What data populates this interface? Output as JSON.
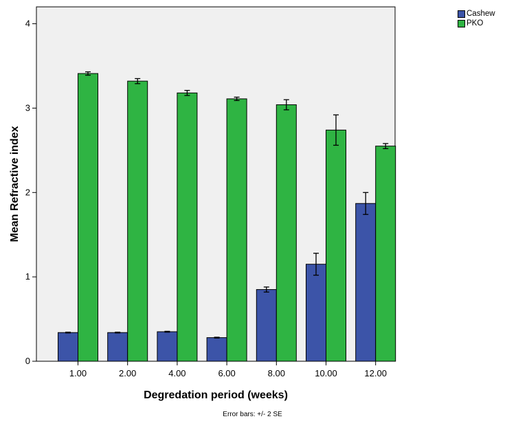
{
  "chart_data": {
    "type": "bar",
    "categories": [
      "1.00",
      "2.00",
      "4.00",
      "6.00",
      "8.00",
      "10.00",
      "12.00"
    ],
    "series": [
      {
        "name": "Cashew",
        "color": "#3c54a8",
        "values": [
          0.34,
          0.34,
          0.35,
          0.28,
          0.85,
          1.15,
          1.87
        ],
        "error_low": [
          0.335,
          0.335,
          0.345,
          0.275,
          0.82,
          1.02,
          1.74
        ],
        "error_high": [
          0.345,
          0.345,
          0.355,
          0.285,
          0.88,
          1.28,
          2.0
        ]
      },
      {
        "name": "PKO",
        "color": "#2fb443",
        "values": [
          3.41,
          3.32,
          3.18,
          3.11,
          3.04,
          2.74,
          2.55
        ],
        "error_low": [
          3.39,
          3.29,
          3.15,
          3.09,
          2.98,
          2.56,
          2.52
        ],
        "error_high": [
          3.43,
          3.35,
          3.21,
          3.13,
          3.1,
          2.92,
          2.58
        ]
      }
    ],
    "xlabel": "Degredation period (weeks)",
    "ylabel": "Mean Refractive index",
    "ylim": [
      0,
      4.2
    ],
    "yticks": [
      "0",
      "1",
      "2",
      "3",
      "4"
    ],
    "legend_position": "top-right",
    "footnote": "Error bars: +/- 2 SE",
    "plot_background": "#f0f0f0",
    "grid": false
  }
}
